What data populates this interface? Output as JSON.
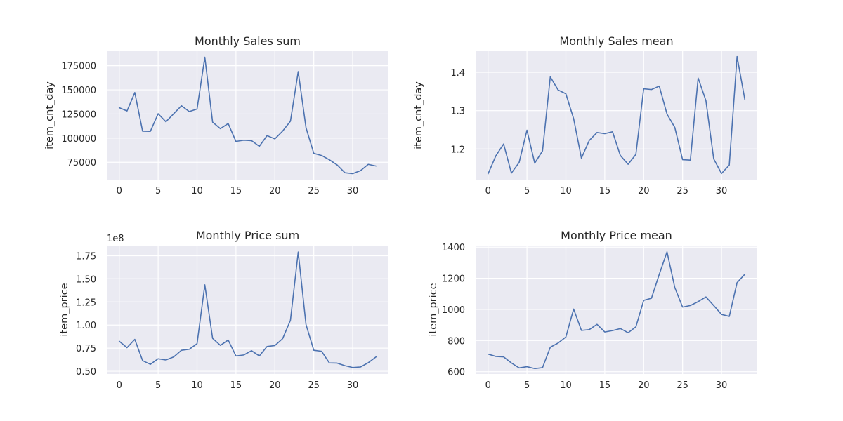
{
  "figure": {
    "background": "#ffffff",
    "axes_background": "#eaeaf2",
    "grid_color": "#ffffff",
    "line_color": "#4c72b0"
  },
  "chart_data": [
    {
      "type": "line",
      "title": "Monthly Sales sum",
      "ylabel": "item_cnt_day",
      "xlabel": "",
      "offset_text": "",
      "xlim": [
        -1.6,
        34.6
      ],
      "ylim": [
        57000,
        190000
      ],
      "xticks": [
        0,
        5,
        10,
        15,
        20,
        25,
        30
      ],
      "yticks": [
        75000,
        100000,
        125000,
        150000,
        175000
      ],
      "ytick_labels": [
        "75000",
        "100000",
        "125000",
        "150000",
        "175000"
      ],
      "grid": true,
      "x": [
        0,
        1,
        2,
        3,
        4,
        5,
        6,
        7,
        8,
        9,
        10,
        11,
        12,
        13,
        14,
        15,
        16,
        17,
        18,
        19,
        20,
        21,
        22,
        23,
        24,
        25,
        26,
        27,
        28,
        29,
        30,
        31,
        32,
        33
      ],
      "values": [
        131500,
        128100,
        147200,
        107200,
        107000,
        125300,
        116900,
        125300,
        133500,
        127500,
        130100,
        183800,
        116500,
        109800,
        115100,
        96600,
        97800,
        97400,
        91500,
        102600,
        99200,
        107300,
        117500,
        168900,
        110900,
        84200,
        82000,
        77600,
        72200,
        64100,
        63200,
        66300,
        72800,
        71100
      ]
    },
    {
      "type": "line",
      "title": "Monthly Sales mean",
      "ylabel": "item_cnt_day",
      "xlabel": "",
      "offset_text": "",
      "xlim": [
        -1.6,
        34.6
      ],
      "ylim": [
        1.12,
        1.455
      ],
      "xticks": [
        0,
        5,
        10,
        15,
        20,
        25,
        30
      ],
      "yticks": [
        1.2,
        1.3,
        1.4
      ],
      "ytick_labels": [
        "1.2",
        "1.3",
        "1.4"
      ],
      "grid": true,
      "x": [
        0,
        1,
        2,
        3,
        4,
        5,
        6,
        7,
        8,
        9,
        10,
        11,
        12,
        13,
        14,
        15,
        16,
        17,
        18,
        19,
        20,
        21,
        22,
        23,
        24,
        25,
        26,
        27,
        28,
        29,
        30,
        31,
        32,
        33
      ],
      "values": [
        1.135,
        1.182,
        1.213,
        1.137,
        1.165,
        1.249,
        1.163,
        1.195,
        1.388,
        1.354,
        1.344,
        1.279,
        1.176,
        1.222,
        1.243,
        1.24,
        1.245,
        1.183,
        1.16,
        1.186,
        1.357,
        1.355,
        1.364,
        1.291,
        1.256,
        1.172,
        1.171,
        1.385,
        1.326,
        1.174,
        1.136,
        1.158,
        1.441,
        1.329
      ]
    },
    {
      "type": "line",
      "title": "Monthly Price sum",
      "ylabel": "item_price",
      "xlabel": "",
      "offset_text": "1e8",
      "xlim": [
        -1.6,
        34.6
      ],
      "ylim": [
        0.47,
        1.86
      ],
      "xticks": [
        0,
        5,
        10,
        15,
        20,
        25,
        30
      ],
      "yticks": [
        0.5,
        0.75,
        1.0,
        1.25,
        1.5,
        1.75
      ],
      "ytick_labels": [
        "0.50",
        "0.75",
        "1.00",
        "1.25",
        "1.50",
        "1.75"
      ],
      "grid": true,
      "x": [
        0,
        1,
        2,
        3,
        4,
        5,
        6,
        7,
        8,
        9,
        10,
        11,
        12,
        13,
        14,
        15,
        16,
        17,
        18,
        19,
        20,
        21,
        22,
        23,
        24,
        25,
        26,
        27,
        28,
        29,
        30,
        31,
        32,
        33
      ],
      "values": [
        0.825,
        0.755,
        0.845,
        0.615,
        0.575,
        0.635,
        0.622,
        0.655,
        0.727,
        0.738,
        0.798,
        1.435,
        0.856,
        0.78,
        0.838,
        0.665,
        0.676,
        0.722,
        0.666,
        0.768,
        0.778,
        0.853,
        1.052,
        1.79,
        1.006,
        0.727,
        0.716,
        0.59,
        0.588,
        0.56,
        0.54,
        0.546,
        0.592,
        0.655
      ]
    },
    {
      "type": "line",
      "title": "Monthly Price mean",
      "ylabel": "item_price",
      "xlabel": "",
      "offset_text": "",
      "xlim": [
        -1.6,
        34.6
      ],
      "ylim": [
        585,
        1410
      ],
      "xticks": [
        0,
        5,
        10,
        15,
        20,
        25,
        30
      ],
      "yticks": [
        600,
        800,
        1000,
        1200,
        1400
      ],
      "ytick_labels": [
        "600",
        "800",
        "1000",
        "1200",
        "1400"
      ],
      "grid": true,
      "x": [
        0,
        1,
        2,
        3,
        4,
        5,
        6,
        7,
        8,
        9,
        10,
        11,
        12,
        13,
        14,
        15,
        16,
        17,
        18,
        19,
        20,
        21,
        22,
        23,
        24,
        25,
        26,
        27,
        28,
        29,
        30,
        31,
        32,
        33
      ],
      "values": [
        713,
        698,
        695,
        656,
        624,
        632,
        620,
        626,
        757,
        784,
        823,
        1002,
        865,
        870,
        904,
        855,
        864,
        877,
        850,
        888,
        1058,
        1072,
        1225,
        1370,
        1140,
        1015,
        1025,
        1050,
        1080,
        1025,
        968,
        955,
        1172,
        1226
      ]
    }
  ]
}
